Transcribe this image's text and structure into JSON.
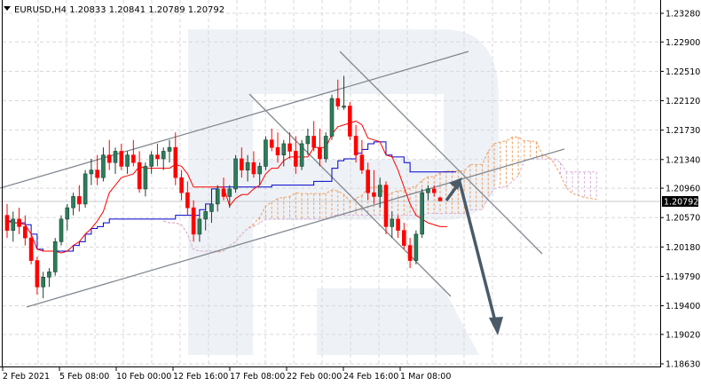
{
  "header": {
    "symbol": "EURUSD,H4",
    "open": "1.20833",
    "high": "1.20841",
    "low": "1.20789",
    "close": "1.20792",
    "text": "EURUSD,H4  1.20833 1.20841 1.20789 1.20792",
    "menu_icon": "triangle-down-icon"
  },
  "price_axis": {
    "labels": [
      "1.23280",
      "1.22900",
      "1.22510",
      "1.22120",
      "1.21730",
      "1.21340",
      "1.20960",
      "1.20570",
      "1.20180",
      "1.19790",
      "1.19400",
      "1.19020",
      "1.18630"
    ],
    "current_price": "1.20792"
  },
  "time_axis": {
    "labels": [
      "2 Feb 2021",
      "5 Feb 08:00",
      "10 Feb 00:00",
      "12 Feb 16:00",
      "17 Feb 08:00",
      "22 Feb 00:00",
      "24 Feb 16:00",
      "1 Mar 08:00"
    ]
  },
  "colors": {
    "bull": "#2e7d5b",
    "bear": "#ff0000",
    "tenkan": "#ff0000",
    "kijun": "#0000cc",
    "cloud_up": "#f0a060",
    "cloud_down": "#d8b0d8",
    "trendline": "#808890",
    "arrow": "#4a5a68",
    "watermark": "#eef2f7",
    "grid": "#d8d8d8"
  },
  "chart_data": {
    "type": "candlestick",
    "title": "EURUSD,H4",
    "xlabel": "",
    "ylabel": "",
    "ylim": [
      1.1863,
      1.2328
    ],
    "x_tick_labels": [
      "2 Feb 2021",
      "5 Feb 08:00",
      "10 Feb 00:00",
      "12 Feb 16:00",
      "17 Feb 08:00",
      "22 Feb 00:00",
      "24 Feb 16:00",
      "1 Mar 08:00"
    ],
    "y_tick_labels": [
      "1.23280",
      "1.22900",
      "1.22510",
      "1.22120",
      "1.21730",
      "1.21340",
      "1.20960",
      "1.20570",
      "1.20180",
      "1.19790",
      "1.19400",
      "1.19020",
      "1.18630"
    ],
    "last_ohlc": {
      "open": 1.20833,
      "high": 1.20841,
      "low": 1.20789,
      "close": 1.20792
    },
    "indicators": [
      "Ichimoku Kinko Hyo (Tenkan-sen red, Kijun-sen blue, Kumo cloud)"
    ],
    "annotations": [
      "Ascending price channel (two parallel gray lines)",
      "Descending channel (two parallel gray lines)",
      "Forecast arrow: up to ~1.2092, then down to ~1.1915"
    ],
    "candles": [
      [
        1.206,
        1.2075,
        1.203,
        1.204
      ],
      [
        1.204,
        1.2065,
        1.2025,
        1.2055
      ],
      [
        1.2055,
        1.207,
        1.2035,
        1.2045
      ],
      [
        1.2045,
        1.206,
        1.202,
        1.203
      ],
      [
        1.203,
        1.204,
        1.1995,
        1.2
      ],
      [
        1.2,
        1.2005,
        1.1955,
        1.1965
      ],
      [
        1.1965,
        1.1985,
        1.195,
        1.1978
      ],
      [
        1.1978,
        1.199,
        1.1965,
        1.1985
      ],
      [
        1.1985,
        1.203,
        1.198,
        1.2025
      ],
      [
        1.2025,
        1.206,
        1.202,
        1.2055
      ],
      [
        1.2055,
        1.2075,
        1.204,
        1.207
      ],
      [
        1.207,
        1.209,
        1.206,
        1.2085
      ],
      [
        1.2085,
        1.21,
        1.2065,
        1.2075
      ],
      [
        1.2075,
        1.212,
        1.207,
        1.2115
      ],
      [
        1.2115,
        1.2135,
        1.21,
        1.212
      ],
      [
        1.212,
        1.214,
        1.21,
        1.211
      ],
      [
        1.211,
        1.215,
        1.2105,
        1.214
      ],
      [
        1.214,
        1.216,
        1.212,
        1.213
      ],
      [
        1.213,
        1.215,
        1.2115,
        1.2145
      ],
      [
        1.2145,
        1.2155,
        1.212,
        1.2125
      ],
      [
        1.2125,
        1.2145,
        1.2115,
        1.214
      ],
      [
        1.214,
        1.216,
        1.2125,
        1.213
      ],
      [
        1.213,
        1.2145,
        1.209,
        1.2095
      ],
      [
        1.2095,
        1.213,
        1.2085,
        1.2125
      ],
      [
        1.2125,
        1.2145,
        1.2115,
        1.214
      ],
      [
        1.214,
        1.2155,
        1.2125,
        1.2135
      ],
      [
        1.2135,
        1.215,
        1.212,
        1.2145
      ],
      [
        1.2145,
        1.216,
        1.213,
        1.215
      ],
      [
        1.215,
        1.217,
        1.21,
        1.211
      ],
      [
        1.211,
        1.212,
        1.208,
        1.209
      ],
      [
        1.209,
        1.2105,
        1.206,
        1.207
      ],
      [
        1.207,
        1.208,
        1.2025,
        1.2035
      ],
      [
        1.2035,
        1.206,
        1.2025,
        1.2055
      ],
      [
        1.2055,
        1.2075,
        1.204,
        1.2065
      ],
      [
        1.2065,
        1.208,
        1.205,
        1.2075
      ],
      [
        1.2075,
        1.21,
        1.2065,
        1.2095
      ],
      [
        1.2095,
        1.211,
        1.208,
        1.2085
      ],
      [
        1.2085,
        1.21,
        1.207,
        1.2095
      ],
      [
        1.2095,
        1.214,
        1.209,
        1.2135
      ],
      [
        1.2135,
        1.215,
        1.211,
        1.212
      ],
      [
        1.212,
        1.214,
        1.2105,
        1.213
      ],
      [
        1.213,
        1.2145,
        1.211,
        1.2115
      ],
      [
        1.2115,
        1.213,
        1.21,
        1.2125
      ],
      [
        1.2125,
        1.2165,
        1.212,
        1.216
      ],
      [
        1.216,
        1.2175,
        1.2145,
        1.215
      ],
      [
        1.215,
        1.217,
        1.213,
        1.214
      ],
      [
        1.214,
        1.216,
        1.2125,
        1.2155
      ],
      [
        1.2155,
        1.217,
        1.2135,
        1.2145
      ],
      [
        1.2145,
        1.2165,
        1.2115,
        1.2125
      ],
      [
        1.2125,
        1.216,
        1.212,
        1.2155
      ],
      [
        1.2155,
        1.2175,
        1.214,
        1.2165
      ],
      [
        1.2165,
        1.2185,
        1.2145,
        1.215
      ],
      [
        1.215,
        1.2175,
        1.2125,
        1.2135
      ],
      [
        1.2135,
        1.217,
        1.213,
        1.2165
      ],
      [
        1.2165,
        1.222,
        1.216,
        1.2215
      ],
      [
        1.2215,
        1.224,
        1.22,
        1.2205
      ],
      [
        1.2205,
        1.2245,
        1.22,
        1.2205
      ],
      [
        1.2205,
        1.221,
        1.216,
        1.2165
      ],
      [
        1.2165,
        1.218,
        1.213,
        1.214
      ],
      [
        1.214,
        1.216,
        1.2115,
        1.212
      ],
      [
        1.212,
        1.213,
        1.208,
        1.209
      ],
      [
        1.209,
        1.212,
        1.2075,
        1.2085
      ],
      [
        1.2085,
        1.211,
        1.207,
        1.21
      ],
      [
        1.21,
        1.2105,
        1.2035,
        1.2045
      ],
      [
        1.2045,
        1.2065,
        1.203,
        1.2055
      ],
      [
        1.2055,
        1.206,
        1.203,
        1.204
      ],
      [
        1.204,
        1.205,
        1.2015,
        1.202
      ],
      [
        1.202,
        1.203,
        1.199,
        1.2
      ],
      [
        1.2,
        1.204,
        1.1995,
        1.2035
      ],
      [
        1.2035,
        1.2095,
        1.203,
        1.209
      ],
      [
        1.209,
        1.21,
        1.208,
        1.2095
      ],
      [
        1.2095,
        1.21,
        1.2085,
        1.209
      ],
      [
        1.20833,
        1.20841,
        1.20789,
        1.20792
      ]
    ]
  }
}
